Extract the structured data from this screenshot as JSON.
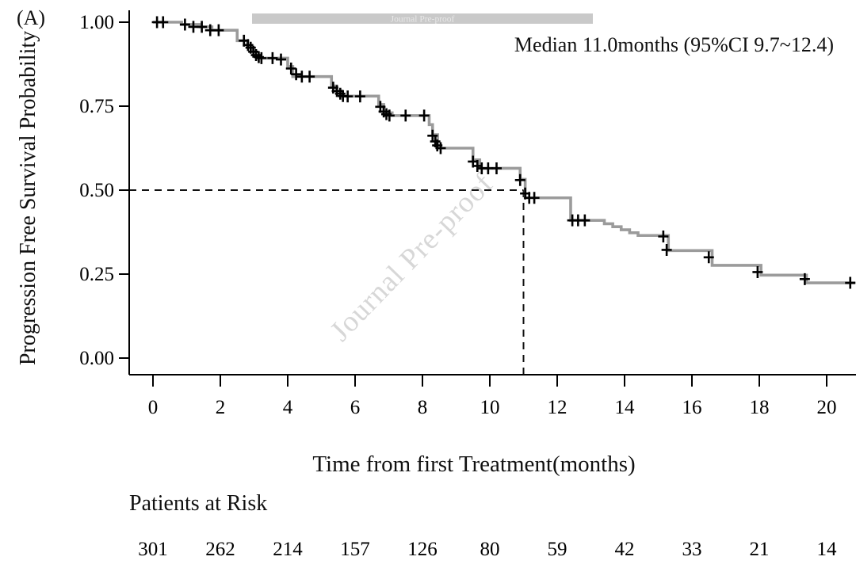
{
  "figure": {
    "panel_label": "(A)",
    "median_annotation": "Median 11.0months (95%CI 9.7~12.4)",
    "watermark_banner_text": "Journal Pre-proof",
    "watermark_diagonal_text": "Journal Pre-proof"
  },
  "colors": {
    "curve": "#9b9b9b",
    "axis": "#000000",
    "censor": "#000000",
    "dashed_line": "#111111",
    "banner_bg": "#c9c9c9",
    "banner_text": "#e8e8e8",
    "watermark": "#d7d7d7"
  },
  "chart_data": {
    "type": "line",
    "subtype": "kaplan-meier-step",
    "title": "",
    "xlabel": "Time from first Treatment(months)",
    "ylabel": "Progression Free Survival Probability",
    "xlim": [
      0,
      21
    ],
    "ylim": [
      0,
      1
    ],
    "grid": false,
    "x_ticks": [
      0,
      2,
      4,
      6,
      8,
      10,
      12,
      14,
      16,
      18,
      20
    ],
    "y_ticks": [
      0.0,
      0.25,
      0.5,
      0.75,
      1.0
    ],
    "median": {
      "time_months": 11.0,
      "probability": 0.5,
      "ci_95": "9.7~12.4",
      "label": "Median 11.0months (95%CI 9.7~12.4)"
    },
    "series": [
      {
        "name": "Progression Free Survival",
        "color": "#9b9b9b",
        "step_points": [
          [
            0,
            1.0
          ],
          [
            0.85,
            0.993
          ],
          [
            1.4,
            0.986
          ],
          [
            1.75,
            0.976
          ],
          [
            2.5,
            0.945
          ],
          [
            2.8,
            0.93
          ],
          [
            2.95,
            0.915
          ],
          [
            3.05,
            0.9
          ],
          [
            3.15,
            0.893
          ],
          [
            4.0,
            0.868
          ],
          [
            4.15,
            0.838
          ],
          [
            5.3,
            0.81
          ],
          [
            5.45,
            0.795
          ],
          [
            5.6,
            0.78
          ],
          [
            6.7,
            0.755
          ],
          [
            6.85,
            0.73
          ],
          [
            7.1,
            0.722
          ],
          [
            8.2,
            0.695
          ],
          [
            8.3,
            0.665
          ],
          [
            8.45,
            0.625
          ],
          [
            9.5,
            0.59
          ],
          [
            9.7,
            0.565
          ],
          [
            10.9,
            0.532
          ],
          [
            11.05,
            0.477
          ],
          [
            12.4,
            0.41
          ],
          [
            13.4,
            0.4
          ],
          [
            13.65,
            0.391
          ],
          [
            13.9,
            0.382
          ],
          [
            14.15,
            0.373
          ],
          [
            14.4,
            0.365
          ],
          [
            15.3,
            0.32
          ],
          [
            16.6,
            0.276
          ],
          [
            18.05,
            0.247
          ],
          [
            19.4,
            0.224
          ],
          [
            20.85,
            0.224
          ]
        ]
      }
    ],
    "censor_marks": [
      [
        0.12,
        1.0
      ],
      [
        0.3,
        1.0
      ],
      [
        0.95,
        0.993
      ],
      [
        1.2,
        0.986
      ],
      [
        1.45,
        0.986
      ],
      [
        1.7,
        0.976
      ],
      [
        1.95,
        0.976
      ],
      [
        2.7,
        0.945
      ],
      [
        2.82,
        0.932
      ],
      [
        2.9,
        0.924
      ],
      [
        2.98,
        0.912
      ],
      [
        3.06,
        0.902
      ],
      [
        3.14,
        0.896
      ],
      [
        3.22,
        0.893
      ],
      [
        3.55,
        0.893
      ],
      [
        3.8,
        0.889
      ],
      [
        4.1,
        0.862
      ],
      [
        4.25,
        0.845
      ],
      [
        4.42,
        0.838
      ],
      [
        4.65,
        0.838
      ],
      [
        5.35,
        0.805
      ],
      [
        5.46,
        0.795
      ],
      [
        5.56,
        0.787
      ],
      [
        5.64,
        0.78
      ],
      [
        5.78,
        0.779
      ],
      [
        6.15,
        0.779
      ],
      [
        6.75,
        0.748
      ],
      [
        6.85,
        0.734
      ],
      [
        6.93,
        0.726
      ],
      [
        7.02,
        0.722
      ],
      [
        7.5,
        0.722
      ],
      [
        8.05,
        0.722
      ],
      [
        8.3,
        0.662
      ],
      [
        8.38,
        0.645
      ],
      [
        8.44,
        0.633
      ],
      [
        8.54,
        0.625
      ],
      [
        9.5,
        0.585
      ],
      [
        9.63,
        0.572
      ],
      [
        9.76,
        0.565
      ],
      [
        9.95,
        0.565
      ],
      [
        10.2,
        0.565
      ],
      [
        10.9,
        0.53
      ],
      [
        11.05,
        0.49
      ],
      [
        11.17,
        0.477
      ],
      [
        11.32,
        0.477
      ],
      [
        12.45,
        0.41
      ],
      [
        12.62,
        0.41
      ],
      [
        12.82,
        0.41
      ],
      [
        15.15,
        0.362
      ],
      [
        15.25,
        0.322
      ],
      [
        16.5,
        0.3
      ],
      [
        17.95,
        0.256
      ],
      [
        19.35,
        0.235
      ],
      [
        20.7,
        0.224
      ]
    ],
    "at_risk": {
      "label": "Patients at Risk",
      "times": [
        0,
        2,
        4,
        6,
        8,
        10,
        12,
        14,
        16,
        18,
        20
      ],
      "counts": [
        301,
        262,
        214,
        157,
        126,
        80,
        59,
        42,
        33,
        21,
        14
      ]
    }
  }
}
